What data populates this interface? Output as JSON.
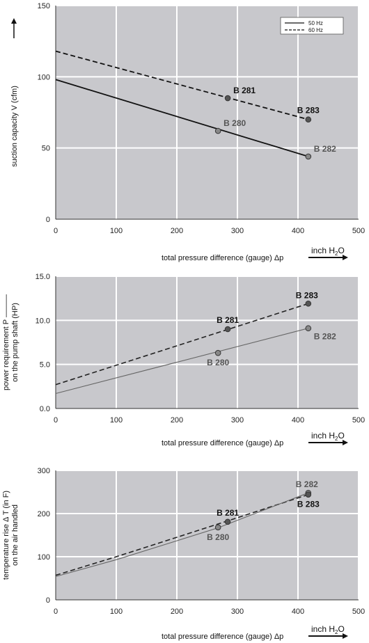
{
  "chart_data": [
    {
      "type": "line",
      "ylabel": "suction capacity V (cfm)",
      "xlabel": "total pressure difference (gauge)  Δp",
      "unit_main": "inch H",
      "unit_sub": "2",
      "unit_tail": "O",
      "xlim": [
        0,
        500
      ],
      "ylim": [
        0,
        150
      ],
      "xticks": [
        "0",
        "100",
        "200",
        "300",
        "400",
        "500"
      ],
      "yticks": [
        "0",
        "50",
        "100",
        "150"
      ],
      "grid": true,
      "legend_position": "top-right",
      "series": [
        {
          "name": "50 Hz",
          "style": "solid",
          "color": "#111111",
          "x": [
            0,
            417
          ],
          "y": [
            98,
            44
          ]
        },
        {
          "name": "60 Hz",
          "style": "dashed",
          "color": "#111111",
          "x": [
            0,
            417
          ],
          "y": [
            118,
            70
          ]
        }
      ],
      "points": [
        {
          "label": "B 281",
          "x": 284,
          "y": 85,
          "bold": true,
          "dark": true,
          "pos": "above-right"
        },
        {
          "label": "B 283",
          "x": 417,
          "y": 70,
          "bold": true,
          "dark": true,
          "pos": "above"
        },
        {
          "label": "B 280",
          "x": 268,
          "y": 62,
          "bold": true,
          "dark": false,
          "pos": "above-right"
        },
        {
          "label": "B 282",
          "x": 417,
          "y": 44,
          "bold": true,
          "dark": false,
          "pos": "above-right"
        }
      ]
    },
    {
      "type": "line",
      "ylabel": "power requirement P ———",
      "ylabel2": "on the pump shaft (HP)",
      "xlabel": "total pressure difference (gauge)  Δp",
      "unit_main": "inch H",
      "unit_sub": "2",
      "unit_tail": "O",
      "xlim": [
        0,
        500
      ],
      "ylim": [
        0,
        15
      ],
      "xticks": [
        "0",
        "100",
        "200",
        "300",
        "400",
        "500"
      ],
      "yticks": [
        "0.0",
        "5.0",
        "10.0",
        "15.0"
      ],
      "grid": true,
      "series": [
        {
          "style": "dashed",
          "color": "#222222",
          "x": [
            0,
            417
          ],
          "y": [
            2.7,
            11.9
          ]
        },
        {
          "style": "solid",
          "color": "#666666",
          "x": [
            0,
            417
          ],
          "y": [
            1.7,
            9.1
          ]
        }
      ],
      "points": [
        {
          "label": "B 283",
          "x": 417,
          "y": 11.9,
          "bold": true,
          "dark": true,
          "pos": "above-left"
        },
        {
          "label": "B 281",
          "x": 284,
          "y": 9.0,
          "bold": true,
          "dark": true,
          "pos": "above"
        },
        {
          "label": "B 282",
          "x": 417,
          "y": 9.1,
          "bold": true,
          "dark": false,
          "pos": "below-right"
        },
        {
          "label": "B 280",
          "x": 268,
          "y": 6.3,
          "bold": true,
          "dark": false,
          "pos": "below"
        }
      ]
    },
    {
      "type": "line",
      "ylabel": "temperature rise Δ T   (in F)",
      "ylabel2": "on the air handled",
      "xlabel": "total pressure difference (gauge)  Δp",
      "unit_main": "inch H",
      "unit_sub": "2",
      "unit_tail": "O",
      "xlim": [
        0,
        500
      ],
      "ylim": [
        0,
        300
      ],
      "xticks": [
        "0",
        "100",
        "200",
        "300",
        "400",
        "500"
      ],
      "yticks": [
        "0",
        "100",
        "200",
        "300"
      ],
      "grid": true,
      "series": [
        {
          "style": "dashed",
          "color": "#222222",
          "x": [
            0,
            100,
            200,
            284,
            417
          ],
          "y": [
            57,
            100,
            145,
            183,
            244
          ]
        },
        {
          "style": "solid",
          "color": "#666666",
          "x": [
            0,
            100,
            200,
            268,
            417
          ],
          "y": [
            54,
            93,
            137,
            167,
            248
          ]
        }
      ],
      "points": [
        {
          "label": "B 281",
          "x": 284,
          "y": 181,
          "bold": true,
          "dark": true,
          "pos": "above"
        },
        {
          "label": "B 280",
          "x": 268,
          "y": 168,
          "bold": true,
          "dark": false,
          "pos": "below"
        },
        {
          "label": "B 282",
          "x": 417,
          "y": 248,
          "bold": true,
          "dark": false,
          "pos": "above-left"
        },
        {
          "label": "B 283",
          "x": 417,
          "y": 244,
          "bold": true,
          "dark": true,
          "pos": "below"
        }
      ]
    }
  ]
}
